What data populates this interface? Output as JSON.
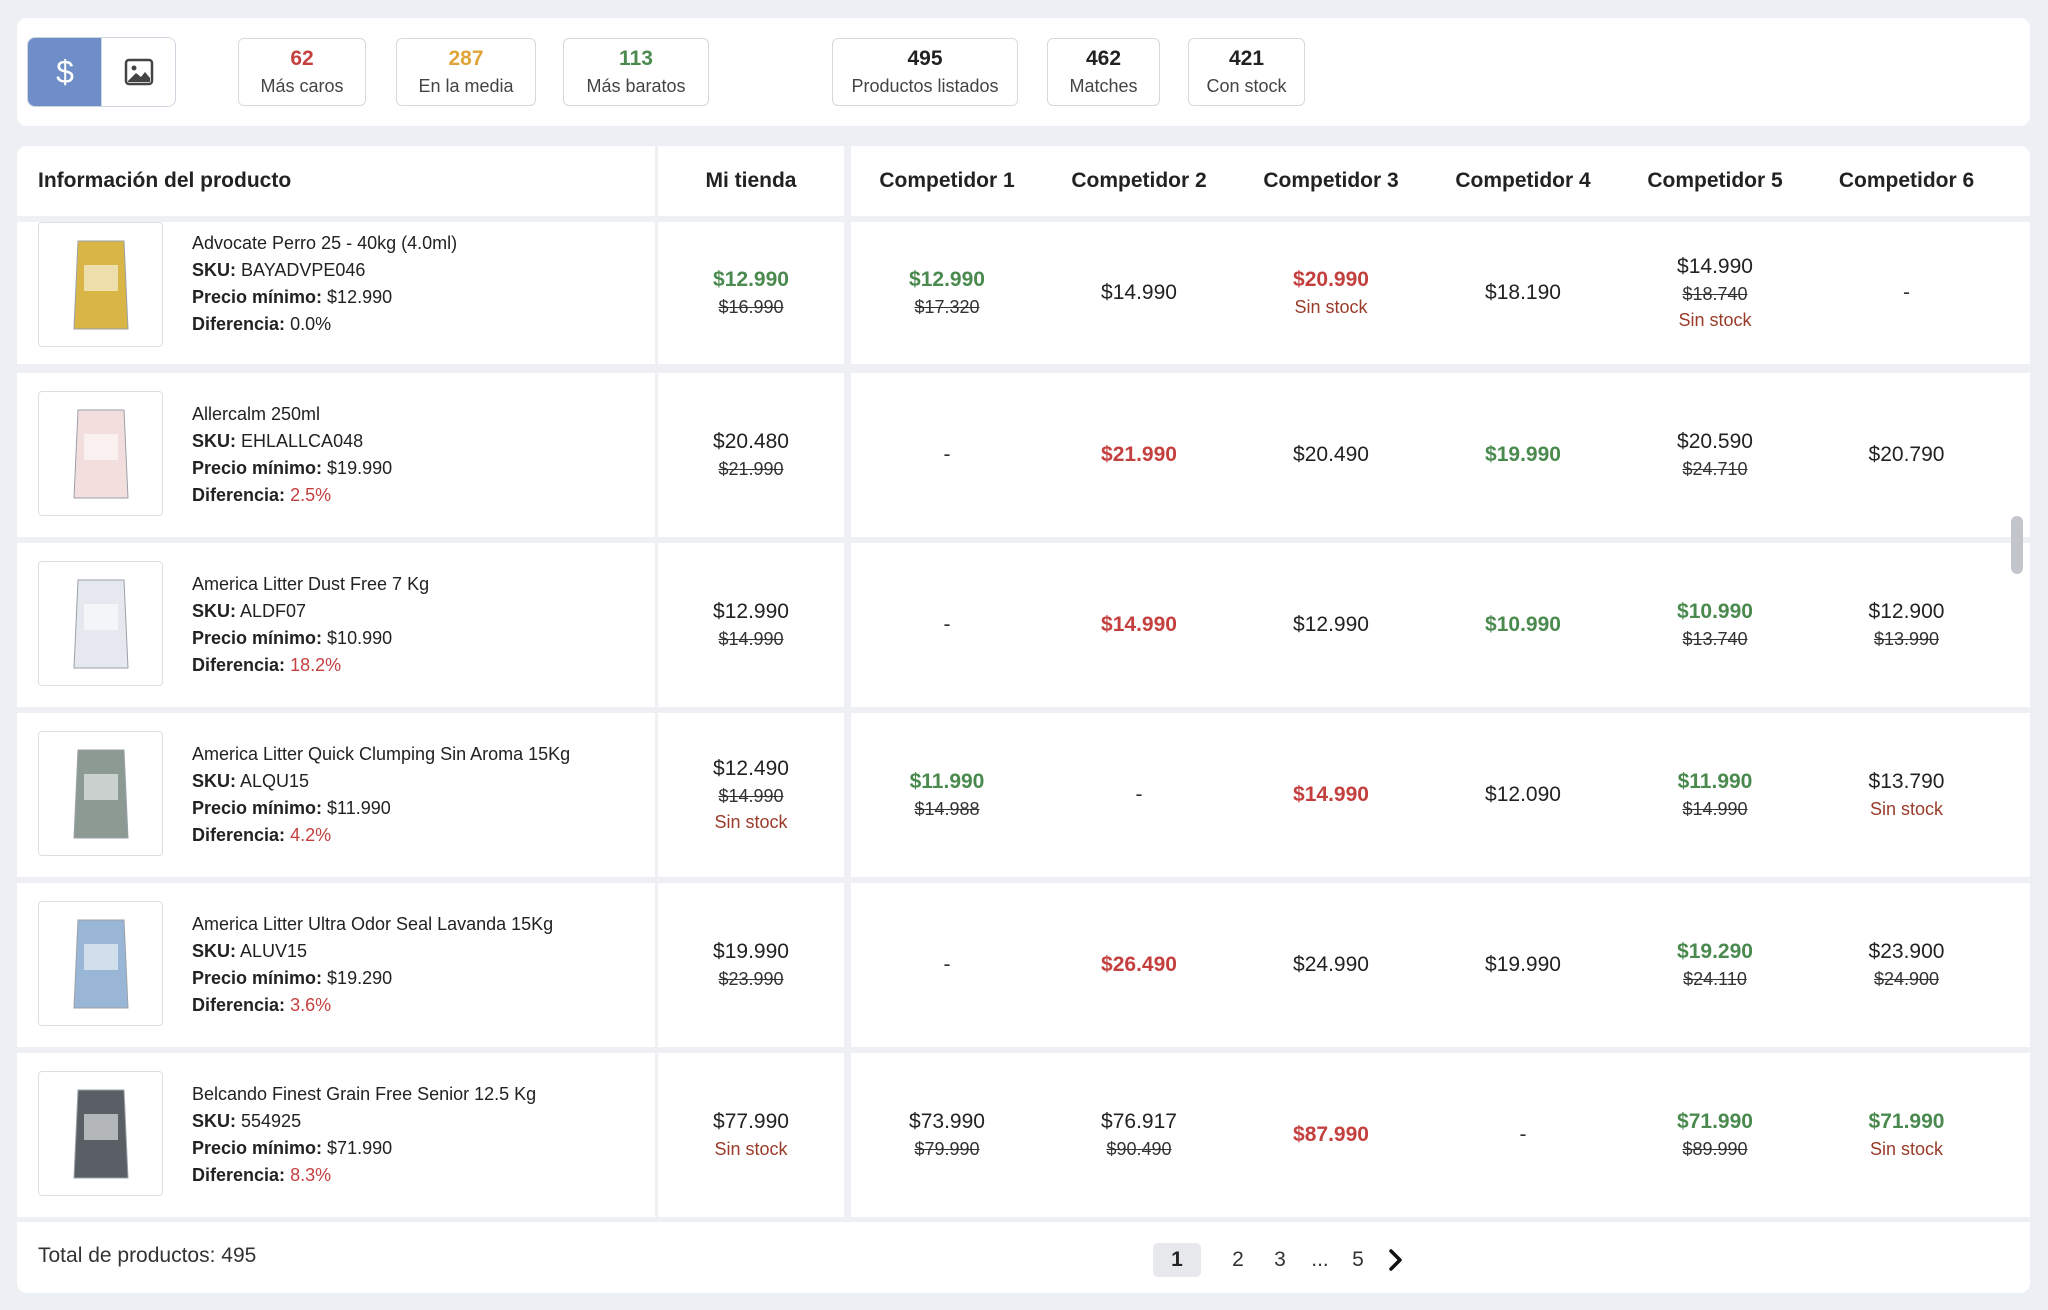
{
  "stats": [
    {
      "value": "62",
      "label": "Más caros",
      "color": "#c4403f"
    },
    {
      "value": "287",
      "label": "En la media",
      "color": "#e0a43a"
    },
    {
      "value": "113",
      "label": "Más baratos",
      "color": "#4a8a4f"
    },
    {
      "value": "495",
      "label": "Productos listados",
      "color": "#333333"
    },
    {
      "value": "462",
      "label": "Matches",
      "color": "#333333"
    },
    {
      "value": "421",
      "label": "Con stock",
      "color": "#333333"
    }
  ],
  "view_toggle": {
    "price_icon": "dollar-icon",
    "image_icon": "image-icon"
  },
  "headers": {
    "product": "Información del producto",
    "my_store": "Mi tienda",
    "competitors": [
      "Competidor 1",
      "Competidor 2",
      "Competidor 3",
      "Competidor 4",
      "Competidor 5",
      "Competidor 6"
    ]
  },
  "labels": {
    "sku": "SKU:",
    "min_price": "Precio mínimo:",
    "difference": "Diferencia:",
    "no_stock": "Sin stock",
    "dash": "-"
  },
  "products": [
    {
      "name": "Advocate Perro 25 - 40kg (4.0ml)",
      "sku": "BAYADVPE046",
      "min_price": "$12.990",
      "difference": "0.0%",
      "diff_red": false,
      "mine": {
        "price": "$12.990",
        "old": "$16.990",
        "tone": "green",
        "nostock": false
      },
      "comps": [
        {
          "price": "$12.990",
          "old": "$17.320",
          "tone": "green",
          "nostock": false
        },
        {
          "price": "$14.990",
          "old": "",
          "tone": "",
          "nostock": false
        },
        {
          "price": "$20.990",
          "old": "",
          "tone": "red",
          "nostock": true
        },
        {
          "price": "$18.190",
          "old": "",
          "tone": "",
          "nostock": false
        },
        {
          "price": "$14.990",
          "old": "$18.740",
          "tone": "",
          "nostock": true
        },
        {
          "price": "-",
          "old": "",
          "tone": "",
          "nostock": false
        }
      ]
    },
    {
      "name": "Allercalm 250ml",
      "sku": "EHLALLCA048",
      "min_price": "$19.990",
      "difference": "2.5%",
      "diff_red": true,
      "mine": {
        "price": "$20.480",
        "old": "$21.990",
        "tone": "",
        "nostock": false
      },
      "comps": [
        {
          "price": "-",
          "old": "",
          "tone": "",
          "nostock": false
        },
        {
          "price": "$21.990",
          "old": "",
          "tone": "red",
          "nostock": false
        },
        {
          "price": "$20.490",
          "old": "",
          "tone": "",
          "nostock": false
        },
        {
          "price": "$19.990",
          "old": "",
          "tone": "green",
          "nostock": false
        },
        {
          "price": "$20.590",
          "old": "$24.710",
          "tone": "",
          "nostock": false
        },
        {
          "price": "$20.790",
          "old": "",
          "tone": "",
          "nostock": false
        }
      ]
    },
    {
      "name": "America Litter Dust Free 7 Kg",
      "sku": "ALDF07",
      "min_price": "$10.990",
      "difference": "18.2%",
      "diff_red": true,
      "mine": {
        "price": "$12.990",
        "old": "$14.990",
        "tone": "",
        "nostock": false
      },
      "comps": [
        {
          "price": "-",
          "old": "",
          "tone": "",
          "nostock": false
        },
        {
          "price": "$14.990",
          "old": "",
          "tone": "red",
          "nostock": false
        },
        {
          "price": "$12.990",
          "old": "",
          "tone": "",
          "nostock": false
        },
        {
          "price": "$10.990",
          "old": "",
          "tone": "green",
          "nostock": false
        },
        {
          "price": "$10.990",
          "old": "$13.740",
          "tone": "green",
          "nostock": false
        },
        {
          "price": "$12.900",
          "old": "$13.990",
          "tone": "",
          "nostock": false
        }
      ]
    },
    {
      "name": "America Litter Quick Clumping Sin Aroma 15Kg",
      "sku": "ALQU15",
      "min_price": "$11.990",
      "difference": "4.2%",
      "diff_red": true,
      "mine": {
        "price": "$12.490",
        "old": "$14.990",
        "tone": "",
        "nostock": true
      },
      "comps": [
        {
          "price": "$11.990",
          "old": "$14.988",
          "tone": "green",
          "nostock": false
        },
        {
          "price": "-",
          "old": "",
          "tone": "",
          "nostock": false
        },
        {
          "price": "$14.990",
          "old": "",
          "tone": "red",
          "nostock": false
        },
        {
          "price": "$12.090",
          "old": "",
          "tone": "",
          "nostock": false
        },
        {
          "price": "$11.990",
          "old": "$14.990",
          "tone": "green",
          "nostock": false
        },
        {
          "price": "$13.790",
          "old": "",
          "tone": "",
          "nostock": true
        }
      ]
    },
    {
      "name": "America Litter Ultra Odor Seal Lavanda 15Kg",
      "sku": "ALUV15",
      "min_price": "$19.290",
      "difference": "3.6%",
      "diff_red": true,
      "mine": {
        "price": "$19.990",
        "old": "$23.990",
        "tone": "",
        "nostock": false
      },
      "comps": [
        {
          "price": "-",
          "old": "",
          "tone": "",
          "nostock": false
        },
        {
          "price": "$26.490",
          "old": "",
          "tone": "red",
          "nostock": false
        },
        {
          "price": "$24.990",
          "old": "",
          "tone": "",
          "nostock": false
        },
        {
          "price": "$19.990",
          "old": "",
          "tone": "",
          "nostock": false
        },
        {
          "price": "$19.290",
          "old": "$24.110",
          "tone": "green",
          "nostock": false
        },
        {
          "price": "$23.900",
          "old": "$24.900",
          "tone": "",
          "nostock": false
        }
      ]
    },
    {
      "name": "Belcando Finest Grain Free Senior 12.5 Kg",
      "sku": "554925",
      "min_price": "$71.990",
      "difference": "8.3%",
      "diff_red": true,
      "mine": {
        "price": "$77.990",
        "old": "",
        "tone": "",
        "nostock": true
      },
      "comps": [
        {
          "price": "$73.990",
          "old": "$79.990",
          "tone": "",
          "nostock": false
        },
        {
          "price": "$76.917",
          "old": "$90.490",
          "tone": "",
          "nostock": false
        },
        {
          "price": "$87.990",
          "old": "",
          "tone": "red",
          "nostock": false
        },
        {
          "price": "-",
          "old": "",
          "tone": "",
          "nostock": false
        },
        {
          "price": "$71.990",
          "old": "$89.990",
          "tone": "green",
          "nostock": false
        },
        {
          "price": "$71.990",
          "old": "",
          "tone": "green",
          "nostock": true
        }
      ]
    }
  ],
  "footer": {
    "total": "Total de productos: 495",
    "pages": [
      "1",
      "2",
      "3",
      "...",
      "5"
    ],
    "current_page": "1",
    "next_icon": "chevron-right-icon"
  }
}
